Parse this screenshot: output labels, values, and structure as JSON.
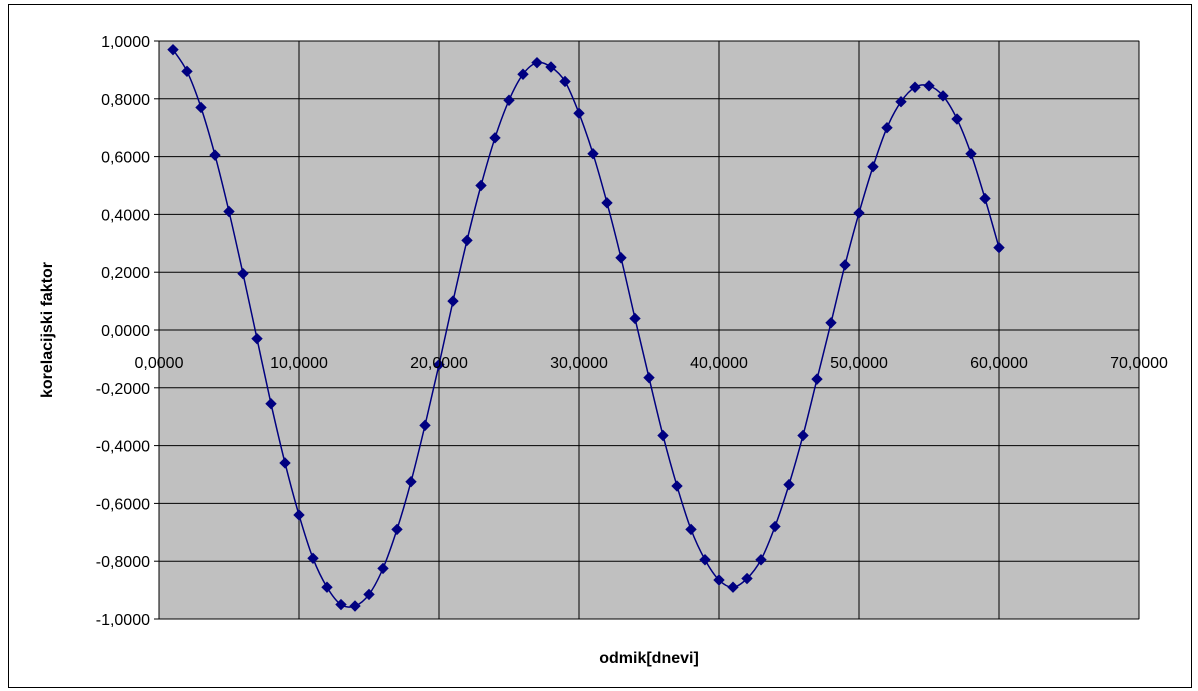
{
  "chart_data": {
    "type": "scatter",
    "title": "",
    "xlabel": "odmik[dnevi]",
    "ylabel": "korelacijski faktor",
    "xlim": [
      0,
      70
    ],
    "ylim": [
      -1,
      1
    ],
    "x_ticks": [
      0,
      10,
      20,
      30,
      40,
      50,
      60,
      70
    ],
    "x_tick_labels": [
      "0,0000",
      "10,0000",
      "20,0000",
      "30,0000",
      "40,0000",
      "50,0000",
      "60,0000",
      "70,0000"
    ],
    "y_ticks": [
      1,
      0.8,
      0.6,
      0.4,
      0.2,
      0,
      -0.2,
      -0.4,
      -0.6,
      -0.8,
      -1
    ],
    "y_tick_labels": [
      "1,0000",
      "0,8000",
      "0,6000",
      "0,4000",
      "0,2000",
      "0,0000",
      "-0,2000",
      "-0,4000",
      "-0,6000",
      "-0,8000",
      "-1,0000"
    ],
    "grid": true,
    "legend": "none",
    "plot_background": "#c0c0c0",
    "series": [
      {
        "color": "#000080",
        "marker": "diamond",
        "line": "smooth",
        "x": [
          1,
          2,
          3,
          4,
          5,
          6,
          7,
          8,
          9,
          10,
          11,
          12,
          13,
          14,
          15,
          16,
          17,
          18,
          19,
          20,
          21,
          22,
          23,
          24,
          25,
          26,
          27,
          28,
          29,
          30,
          31,
          32,
          33,
          34,
          35,
          36,
          37,
          38,
          39,
          40,
          41,
          42,
          43,
          44,
          45,
          46,
          47,
          48,
          49,
          50,
          51,
          52,
          53,
          54,
          55,
          56,
          57,
          58,
          59,
          60
        ],
        "y": [
          0.97,
          0.895,
          0.77,
          0.605,
          0.41,
          0.195,
          -0.03,
          -0.255,
          -0.46,
          -0.64,
          -0.79,
          -0.89,
          -0.95,
          -0.955,
          -0.915,
          -0.825,
          -0.69,
          -0.525,
          -0.33,
          -0.12,
          0.1,
          0.31,
          0.5,
          0.665,
          0.795,
          0.885,
          0.925,
          0.91,
          0.86,
          0.75,
          0.61,
          0.44,
          0.25,
          0.04,
          -0.165,
          -0.365,
          -0.54,
          -0.69,
          -0.795,
          -0.865,
          -0.89,
          -0.86,
          -0.795,
          -0.68,
          -0.535,
          -0.365,
          -0.17,
          0.025,
          0.225,
          0.405,
          0.565,
          0.7,
          0.79,
          0.84,
          0.845,
          0.81,
          0.73,
          0.61,
          0.455,
          0.285
        ]
      }
    ]
  }
}
